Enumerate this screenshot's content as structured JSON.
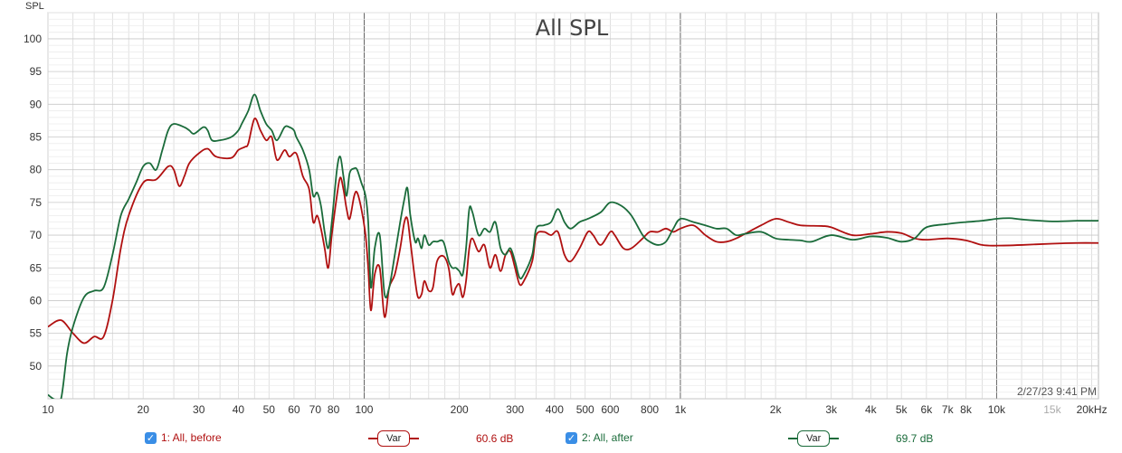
{
  "chart_data": {
    "type": "line",
    "title": "All SPL",
    "ylabel": "SPL",
    "xlabel": "",
    "x_scale": "log",
    "xlim": [
      10,
      21000
    ],
    "ylim": [
      45,
      104
    ],
    "yticks": [
      50,
      55,
      60,
      65,
      70,
      75,
      80,
      85,
      90,
      95,
      100
    ],
    "xtick_labels": [
      {
        "x": 10,
        "label": "10"
      },
      {
        "x": 20,
        "label": "20"
      },
      {
        "x": 30,
        "label": "30"
      },
      {
        "x": 40,
        "label": "40"
      },
      {
        "x": 50,
        "label": "50"
      },
      {
        "x": 60,
        "label": "60"
      },
      {
        "x": 70,
        "label": "70"
      },
      {
        "x": 80,
        "label": "80"
      },
      {
        "x": 100,
        "label": "100"
      },
      {
        "x": 200,
        "label": "200"
      },
      {
        "x": 300,
        "label": "300"
      },
      {
        "x": 400,
        "label": "400"
      },
      {
        "x": 500,
        "label": "500"
      },
      {
        "x": 600,
        "label": "600"
      },
      {
        "x": 800,
        "label": "800"
      },
      {
        "x": 1000,
        "label": "1k"
      },
      {
        "x": 2000,
        "label": "2k"
      },
      {
        "x": 3000,
        "label": "3k"
      },
      {
        "x": 4000,
        "label": "4k"
      },
      {
        "x": 5000,
        "label": "5k"
      },
      {
        "x": 6000,
        "label": "6k"
      },
      {
        "x": 7000,
        "label": "7k"
      },
      {
        "x": 8000,
        "label": "8k"
      },
      {
        "x": 10000,
        "label": "10k"
      },
      {
        "x": 15000,
        "label": "15k"
      },
      {
        "x": 20000,
        "label": "20kHz"
      }
    ],
    "grid": true,
    "timestamp": "2/27/23 9:41 PM",
    "series": [
      {
        "name": "1: All, before",
        "color": "#b01010",
        "points": [
          [
            10,
            56
          ],
          [
            11,
            57
          ],
          [
            12,
            55
          ],
          [
            13,
            53.5
          ],
          [
            14,
            54.5
          ],
          [
            15,
            54.5
          ],
          [
            16,
            60
          ],
          [
            17,
            68
          ],
          [
            18,
            73
          ],
          [
            20,
            78
          ],
          [
            22,
            78.5
          ],
          [
            24,
            80.5
          ],
          [
            25,
            80
          ],
          [
            26,
            77.5
          ],
          [
            27,
            79
          ],
          [
            28,
            81
          ],
          [
            30,
            82.5
          ],
          [
            32,
            83.2
          ],
          [
            34,
            82
          ],
          [
            38,
            81.8
          ],
          [
            40,
            83
          ],
          [
            42,
            83.5
          ],
          [
            43,
            84
          ],
          [
            45,
            87.8
          ],
          [
            47,
            86
          ],
          [
            49,
            84.5
          ],
          [
            51,
            85
          ],
          [
            53,
            81.5
          ],
          [
            56,
            83
          ],
          [
            58,
            82
          ],
          [
            61,
            82.5
          ],
          [
            64,
            79
          ],
          [
            67,
            77
          ],
          [
            69,
            72
          ],
          [
            71,
            73
          ],
          [
            73,
            71
          ],
          [
            75,
            68
          ],
          [
            77,
            65
          ],
          [
            79,
            70
          ],
          [
            82,
            76
          ],
          [
            84,
            78.8
          ],
          [
            86,
            77
          ],
          [
            88,
            74
          ],
          [
            90,
            72.5
          ],
          [
            93,
            76
          ],
          [
            95,
            76.5
          ],
          [
            98,
            74
          ],
          [
            101,
            70
          ],
          [
            103,
            65
          ],
          [
            105,
            58.5
          ],
          [
            108,
            64
          ],
          [
            112,
            65
          ],
          [
            116,
            57.5
          ],
          [
            120,
            62
          ],
          [
            125,
            64
          ],
          [
            130,
            68
          ],
          [
            134,
            72
          ],
          [
            137,
            72.5
          ],
          [
            140,
            69
          ],
          [
            145,
            63
          ],
          [
            148,
            60.5
          ],
          [
            152,
            61
          ],
          [
            155,
            63
          ],
          [
            160,
            61.5
          ],
          [
            165,
            62
          ],
          [
            170,
            66
          ],
          [
            178,
            66.8
          ],
          [
            185,
            65
          ],
          [
            190,
            61
          ],
          [
            195,
            62
          ],
          [
            200,
            62.5
          ],
          [
            205,
            60.5
          ],
          [
            210,
            63
          ],
          [
            215,
            68
          ],
          [
            220,
            69.5
          ],
          [
            230,
            67.5
          ],
          [
            240,
            68.5
          ],
          [
            250,
            65
          ],
          [
            260,
            67
          ],
          [
            270,
            64.5
          ],
          [
            280,
            67
          ],
          [
            290,
            67.5
          ],
          [
            300,
            65
          ],
          [
            310,
            62.5
          ],
          [
            320,
            63
          ],
          [
            340,
            66
          ],
          [
            350,
            70
          ],
          [
            370,
            70.5
          ],
          [
            390,
            70
          ],
          [
            410,
            70.5
          ],
          [
            430,
            67
          ],
          [
            450,
            66
          ],
          [
            480,
            68
          ],
          [
            510,
            70.5
          ],
          [
            530,
            70
          ],
          [
            560,
            68.5
          ],
          [
            600,
            70.5
          ],
          [
            620,
            70
          ],
          [
            660,
            68
          ],
          [
            700,
            68
          ],
          [
            760,
            69.5
          ],
          [
            800,
            70.5
          ],
          [
            850,
            70.5
          ],
          [
            900,
            71
          ],
          [
            950,
            70.5
          ],
          [
            1000,
            71
          ],
          [
            1100,
            71.5
          ],
          [
            1200,
            70
          ],
          [
            1300,
            69
          ],
          [
            1400,
            69
          ],
          [
            1500,
            69.5
          ],
          [
            1600,
            70.2
          ],
          [
            1800,
            71.5
          ],
          [
            2000,
            72.5
          ],
          [
            2200,
            72
          ],
          [
            2400,
            71.5
          ],
          [
            2800,
            71.4
          ],
          [
            3000,
            71.2
          ],
          [
            3500,
            70
          ],
          [
            4000,
            70.2
          ],
          [
            4500,
            70.5
          ],
          [
            5000,
            70.3
          ],
          [
            5500,
            69.5
          ],
          [
            6000,
            69.3
          ],
          [
            7000,
            69.5
          ],
          [
            8000,
            69.2
          ],
          [
            9000,
            68.5
          ],
          [
            10000,
            68.4
          ],
          [
            12000,
            68.5
          ],
          [
            15000,
            68.7
          ],
          [
            18000,
            68.8
          ],
          [
            21000,
            68.8
          ]
        ]
      },
      {
        "name": "2: All, after",
        "color": "#1a6b3a",
        "points": [
          [
            10,
            45.6
          ],
          [
            10.5,
            44.9
          ],
          [
            11,
            45
          ],
          [
            11.5,
            52
          ],
          [
            12,
            56
          ],
          [
            13,
            60.5
          ],
          [
            14,
            61.5
          ],
          [
            15,
            62
          ],
          [
            16,
            67
          ],
          [
            17,
            73
          ],
          [
            18,
            75.5
          ],
          [
            19,
            78
          ],
          [
            20,
            80.5
          ],
          [
            21,
            81
          ],
          [
            22,
            80
          ],
          [
            23,
            83
          ],
          [
            24,
            86
          ],
          [
            25,
            87
          ],
          [
            27,
            86.5
          ],
          [
            28,
            86
          ],
          [
            29,
            85.5
          ],
          [
            31,
            86.5
          ],
          [
            32,
            86
          ],
          [
            33,
            84.5
          ],
          [
            35,
            84.5
          ],
          [
            38,
            85
          ],
          [
            40,
            86
          ],
          [
            41,
            87
          ],
          [
            43,
            89
          ],
          [
            45,
            91.5
          ],
          [
            47,
            89
          ],
          [
            49,
            87
          ],
          [
            51,
            86
          ],
          [
            53,
            84.5
          ],
          [
            56,
            86.5
          ],
          [
            58,
            86.5
          ],
          [
            60,
            86
          ],
          [
            61,
            85
          ],
          [
            64,
            83
          ],
          [
            67,
            80
          ],
          [
            69,
            76
          ],
          [
            71,
            76.5
          ],
          [
            73,
            74.5
          ],
          [
            75,
            70.5
          ],
          [
            77,
            68
          ],
          [
            79,
            72
          ],
          [
            82,
            80
          ],
          [
            84,
            82
          ],
          [
            86,
            79
          ],
          [
            88,
            76
          ],
          [
            90,
            79.5
          ],
          [
            93,
            80.2
          ],
          [
            95,
            80
          ],
          [
            98,
            78
          ],
          [
            101,
            76
          ],
          [
            103,
            72
          ],
          [
            105,
            62
          ],
          [
            108,
            68
          ],
          [
            112,
            70
          ],
          [
            116,
            61
          ],
          [
            120,
            62
          ],
          [
            125,
            67
          ],
          [
            130,
            72
          ],
          [
            134,
            75.5
          ],
          [
            137,
            77.2
          ],
          [
            140,
            73
          ],
          [
            145,
            69
          ],
          [
            148,
            69.5
          ],
          [
            152,
            68
          ],
          [
            155,
            70
          ],
          [
            160,
            68.5
          ],
          [
            165,
            69
          ],
          [
            170,
            69
          ],
          [
            178,
            69
          ],
          [
            185,
            66
          ],
          [
            190,
            65
          ],
          [
            195,
            65
          ],
          [
            200,
            64.5
          ],
          [
            205,
            64
          ],
          [
            210,
            68
          ],
          [
            215,
            74
          ],
          [
            220,
            73.5
          ],
          [
            230,
            70
          ],
          [
            240,
            71
          ],
          [
            250,
            70.5
          ],
          [
            260,
            72
          ],
          [
            270,
            68
          ],
          [
            280,
            67
          ],
          [
            290,
            68
          ],
          [
            300,
            66
          ],
          [
            310,
            63.5
          ],
          [
            320,
            64
          ],
          [
            340,
            67
          ],
          [
            350,
            71
          ],
          [
            370,
            71.5
          ],
          [
            390,
            72
          ],
          [
            410,
            74
          ],
          [
            430,
            72
          ],
          [
            450,
            71
          ],
          [
            480,
            72
          ],
          [
            510,
            72.5
          ],
          [
            560,
            73.5
          ],
          [
            600,
            75
          ],
          [
            650,
            74.5
          ],
          [
            700,
            73
          ],
          [
            760,
            70
          ],
          [
            800,
            69
          ],
          [
            850,
            68.5
          ],
          [
            900,
            69
          ],
          [
            950,
            71
          ],
          [
            1000,
            72.5
          ],
          [
            1100,
            72
          ],
          [
            1200,
            71.5
          ],
          [
            1300,
            71
          ],
          [
            1400,
            71
          ],
          [
            1500,
            70
          ],
          [
            1600,
            70.2
          ],
          [
            1800,
            70.5
          ],
          [
            2000,
            69.5
          ],
          [
            2200,
            69.3
          ],
          [
            2400,
            69.2
          ],
          [
            2600,
            69
          ],
          [
            3000,
            70
          ],
          [
            3500,
            69.3
          ],
          [
            4000,
            69.8
          ],
          [
            4500,
            69.6
          ],
          [
            5000,
            69
          ],
          [
            5500,
            69.5
          ],
          [
            6000,
            71.2
          ],
          [
            7000,
            71.7
          ],
          [
            8000,
            72
          ],
          [
            9000,
            72.2
          ],
          [
            10000,
            72.5
          ],
          [
            11000,
            72.6
          ],
          [
            12000,
            72.4
          ],
          [
            15000,
            72.1
          ],
          [
            18000,
            72.2
          ],
          [
            21000,
            72.2
          ]
        ]
      }
    ]
  },
  "legend": {
    "items": [
      {
        "label": "1: All, before",
        "checked_glyph": "✓",
        "var_label": "Var",
        "value": "60.6 dB",
        "color": "#b01010"
      },
      {
        "label": "2: All, after",
        "checked_glyph": "✓",
        "var_label": "Var",
        "value": "69.7 dB",
        "color": "#1a6b3a"
      }
    ]
  }
}
